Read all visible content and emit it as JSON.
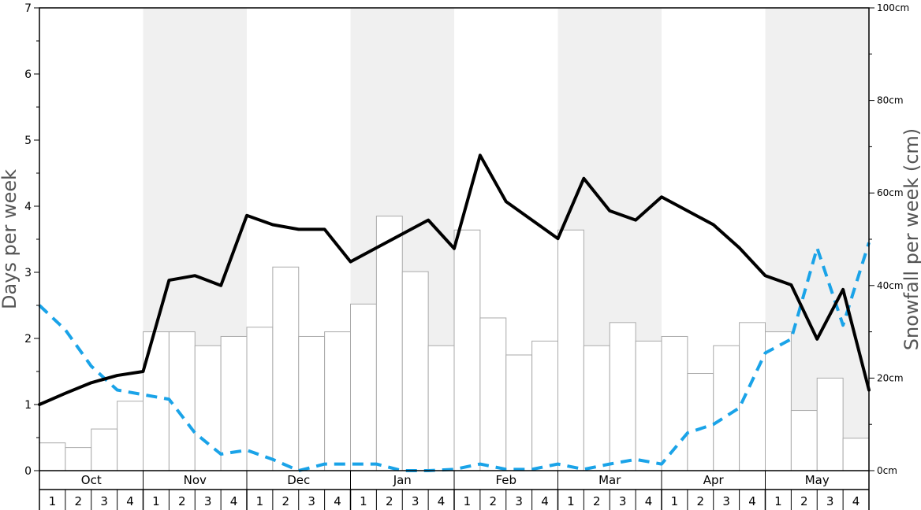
{
  "chart_data": {
    "type": "bar+line",
    "ylabel_left": "Days per week",
    "ylabel_right": "Snowfall per week (cm)",
    "y_left_range": [
      0,
      7
    ],
    "y_left_ticks": [
      "0",
      "1",
      "2",
      "3",
      "4",
      "5",
      "6",
      "7"
    ],
    "y_right_range": [
      0,
      100
    ],
    "y_right_ticks": [
      "0cm",
      "20cm",
      "40cm",
      "60cm",
      "80cm",
      "100cm"
    ],
    "months": [
      "Oct",
      "Nov",
      "Dec",
      "Jan",
      "Feb",
      "Mar",
      "Apr",
      "May"
    ],
    "weeks": [
      "1",
      "2",
      "3",
      "4"
    ],
    "shaded_months": [
      "Nov",
      "Jan",
      "Mar",
      "May"
    ],
    "colors": {
      "bar_fill": "#ffffff",
      "bar_stroke": "#aaaaaa",
      "shade": "#f0f0f0",
      "black_line": "#000000",
      "blue_line": "#1aa3e8"
    },
    "snowfall_bars_days": [
      0.42,
      0.35,
      0.63,
      1.05,
      2.1,
      2.1,
      1.89,
      2.03,
      2.17,
      3.08,
      2.03,
      2.1,
      2.52,
      3.85,
      3.01,
      1.89,
      3.64,
      2.31,
      1.75,
      1.96,
      3.64,
      1.89,
      2.24,
      1.96,
      2.03,
      1.47,
      1.89,
      2.24,
      2.1,
      0.91,
      1.4,
      0.49
    ],
    "black_line_days": [
      1.0,
      1.17,
      1.33,
      1.44,
      1.5,
      2.88,
      2.95,
      2.8,
      3.86,
      3.72,
      3.65,
      3.65,
      3.16,
      3.37,
      3.58,
      3.79,
      3.36,
      4.77,
      4.07,
      3.79,
      3.51,
      4.42,
      3.93,
      3.79,
      4.14,
      3.93,
      3.72,
      3.37,
      2.95,
      2.81,
      1.99,
      2.74,
      1.22
    ],
    "blue_dashed_days": [
      2.5,
      2.13,
      1.58,
      1.22,
      1.15,
      1.08,
      0.57,
      0.25,
      0.31,
      0.17,
      0.0,
      0.1,
      0.1,
      0.1,
      0.0,
      0.0,
      0.02,
      0.1,
      0.02,
      0.02,
      0.1,
      0.02,
      0.1,
      0.17,
      0.1,
      0.57,
      0.7,
      0.95,
      1.78,
      1.99,
      3.37,
      2.2,
      3.45
    ]
  }
}
